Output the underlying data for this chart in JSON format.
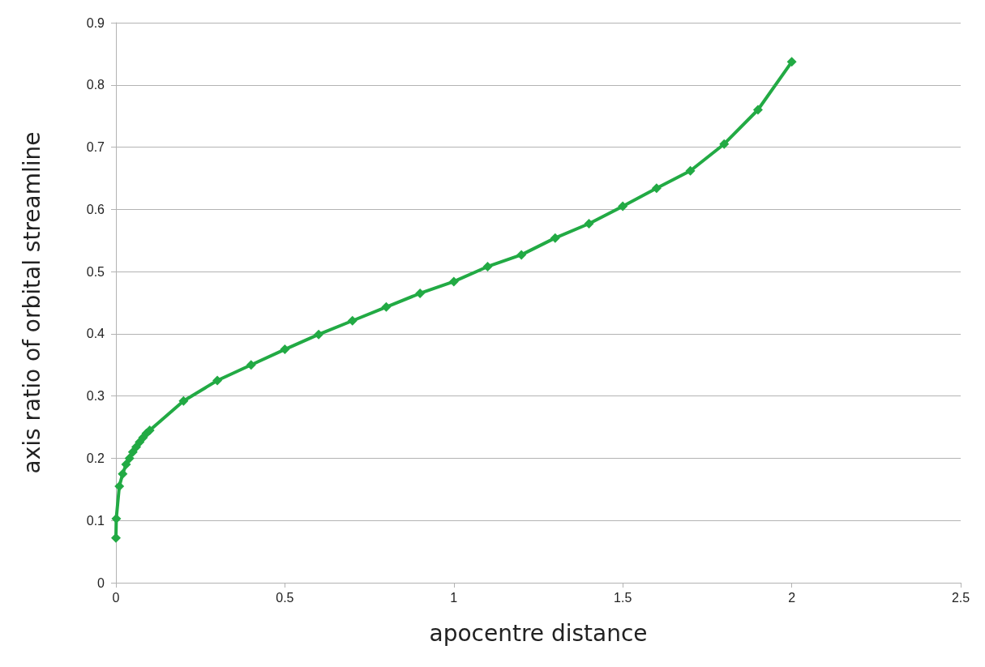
{
  "chart_data": {
    "type": "line",
    "xlabel": "apocentre distance",
    "ylabel": "axis ratio of orbital streamline",
    "x": [
      0,
      0.001,
      0.01,
      0.02,
      0.03,
      0.04,
      0.05,
      0.06,
      0.07,
      0.08,
      0.09,
      0.1,
      0.2,
      0.3,
      0.4,
      0.5,
      0.6,
      0.7,
      0.8,
      0.9,
      1.0,
      1.1,
      1.2,
      1.3,
      1.4,
      1.5,
      1.6,
      1.7,
      1.8,
      1.9,
      2.0
    ],
    "series": [
      {
        "color": "#22aa44",
        "values": [
          0.072,
          0.103,
          0.155,
          0.175,
          0.19,
          0.2,
          0.21,
          0.218,
          0.226,
          0.233,
          0.24,
          0.245,
          0.292,
          0.325,
          0.35,
          0.375,
          0.399,
          0.421,
          0.443,
          0.465,
          0.484,
          0.508,
          0.527,
          0.554,
          0.577,
          0.605,
          0.634,
          0.662,
          0.705,
          0.76,
          0.837
        ]
      }
    ],
    "xlim": [
      0,
      2.5
    ],
    "xticks": [
      0,
      0.5,
      1,
      1.5,
      2,
      2.5
    ],
    "ylim": [
      0,
      0.9
    ],
    "yticks": [
      0,
      0.1,
      0.2,
      0.3,
      0.4,
      0.5,
      0.6,
      0.7,
      0.8,
      0.9
    ],
    "grid": "y",
    "marker": "diamond",
    "line_style": "solid"
  }
}
